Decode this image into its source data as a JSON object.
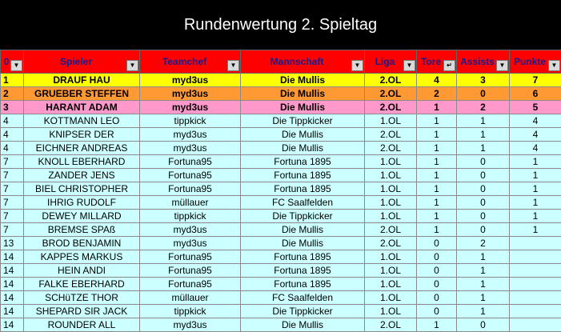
{
  "title": "Rundenwertung 2. Spieltag",
  "headers": [
    {
      "label": "0",
      "icon": "dropdown-arrow-icon"
    },
    {
      "label": "Spieler",
      "icon": "dropdown-arrow-icon"
    },
    {
      "label": "Teamchef",
      "icon": "dropdown-arrow-icon"
    },
    {
      "label": "Mannschaft",
      "icon": "dropdown-arrow-icon"
    },
    {
      "label": "Liga",
      "icon": "dropdown-arrow-icon"
    },
    {
      "label": "Tore",
      "icon": "sort-descending-icon"
    },
    {
      "label": "Assists",
      "icon": "dropdown-arrow-icon"
    },
    {
      "label": "Punkte",
      "icon": "dropdown-arrow-icon"
    }
  ],
  "highlight_colors": {
    "first": "#ffff00",
    "second": "#ff9933",
    "third": "#ff99cc",
    "other": "#ccffff",
    "header": "#ff0000"
  },
  "rows": [
    [
      "1",
      "DRAUF HAU",
      "myd3us",
      "Die Mullis",
      "2.OL",
      "4",
      "3",
      "7"
    ],
    [
      "2",
      "GRUEBER STEFFEN",
      "myd3us",
      "Die Mullis",
      "2.OL",
      "2",
      "0",
      "6"
    ],
    [
      "3",
      "HARANT ADAM",
      "myd3us",
      "Die Mullis",
      "2.OL",
      "1",
      "2",
      "5"
    ],
    [
      "4",
      "KOTTMANN LEO",
      "tippkick",
      "Die Tippkicker",
      "1.OL",
      "1",
      "1",
      "4"
    ],
    [
      "4",
      "KNIPSER DER",
      "myd3us",
      "Die Mullis",
      "2.OL",
      "1",
      "1",
      "4"
    ],
    [
      "4",
      "EICHNER ANDREAS",
      "myd3us",
      "Die Mullis",
      "2.OL",
      "1",
      "1",
      "4"
    ],
    [
      "7",
      "KNOLL EBERHARD",
      "Fortuna95",
      "Fortuna 1895",
      "1.OL",
      "1",
      "0",
      "1"
    ],
    [
      "7",
      "ZANDER JENS",
      "Fortuna95",
      "Fortuna 1895",
      "1.OL",
      "1",
      "0",
      "1"
    ],
    [
      "7",
      "BIEL CHRISTOPHER",
      "Fortuna95",
      "Fortuna 1895",
      "1.OL",
      "1",
      "0",
      "1"
    ],
    [
      "7",
      "IHRIG RUDOLF",
      "müllauer",
      "FC Saalfelden",
      "1.OL",
      "1",
      "0",
      "1"
    ],
    [
      "7",
      "DEWEY MILLARD",
      "tippkick",
      "Die Tippkicker",
      "1.OL",
      "1",
      "0",
      "1"
    ],
    [
      "7",
      "BREMSE SPAß",
      "myd3us",
      "Die Mullis",
      "2.OL",
      "1",
      "0",
      "1"
    ],
    [
      "13",
      "BROD BENJAMIN",
      "myd3us",
      "Die Mullis",
      "2.OL",
      "0",
      "2",
      ""
    ],
    [
      "14",
      "KAPPES MARKUS",
      "Fortuna95",
      "Fortuna 1895",
      "1.OL",
      "0",
      "1",
      ""
    ],
    [
      "14",
      "HEIN ANDI",
      "Fortuna95",
      "Fortuna 1895",
      "1.OL",
      "0",
      "1",
      ""
    ],
    [
      "14",
      "FALKE EBERHARD",
      "Fortuna95",
      "Fortuna 1895",
      "1.OL",
      "0",
      "1",
      ""
    ],
    [
      "14",
      "SCHüTZE THOR",
      "müllauer",
      "FC Saalfelden",
      "1.OL",
      "0",
      "1",
      ""
    ],
    [
      "14",
      "SHEPARD SIR JACK",
      "tippkick",
      "Die Tippkicker",
      "1.OL",
      "0",
      "1",
      ""
    ],
    [
      "14",
      "ROUNDER ALL",
      "myd3us",
      "Die Mullis",
      "2.OL",
      "1",
      "0",
      ""
    ]
  ]
}
